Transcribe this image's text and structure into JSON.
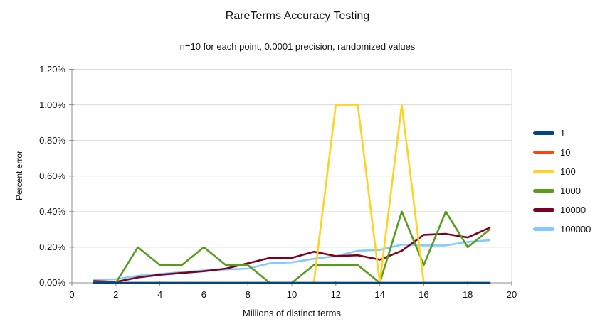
{
  "chart_data": {
    "type": "line",
    "title": "RareTerms Accuracy Testing",
    "subtitle": "n=10 for each point, 0.0001 precision, randomized values",
    "xlabel": "Millions of distinct terms",
    "ylabel": "Percent error",
    "x_range": [
      0,
      20
    ],
    "x_tick_step": 2,
    "x_tick_labels": [
      "0",
      "2",
      "4",
      "6",
      "8",
      "10",
      "12",
      "14",
      "16",
      "18",
      "20"
    ],
    "y_range_percent": [
      0,
      1.2
    ],
    "y_tick_step_percent": 0.2,
    "y_tick_labels": [
      "0.00%",
      "0.20%",
      "0.40%",
      "0.60%",
      "0.80%",
      "1.00%",
      "1.20%"
    ],
    "grid": "horizontal-only",
    "legend_position": "right",
    "x": [
      1,
      2,
      3,
      4,
      5,
      6,
      7,
      8,
      9,
      10,
      11,
      12,
      13,
      14,
      15,
      16,
      17,
      18,
      19
    ],
    "series": [
      {
        "name": "1",
        "color": "#004586",
        "values": [
          0,
          0,
          0,
          0,
          0,
          0,
          0,
          0,
          0,
          0,
          0,
          0,
          0,
          0,
          0,
          0,
          0,
          0,
          0
        ]
      },
      {
        "name": "10",
        "color": "#FF420E",
        "values": [
          0,
          0,
          0,
          0,
          0,
          0,
          0,
          0,
          0,
          0,
          0,
          0,
          0,
          0,
          0,
          0,
          0,
          0,
          0
        ]
      },
      {
        "name": "100",
        "color": "#FFD320",
        "values": [
          0,
          0,
          0,
          0,
          0,
          0,
          0,
          0,
          0,
          0,
          0,
          1.0,
          1.0,
          0,
          1.0,
          0,
          0,
          0,
          0
        ]
      },
      {
        "name": "1000",
        "color": "#579D1C",
        "values": [
          0,
          0,
          0.2,
          0.1,
          0.1,
          0.2,
          0.1,
          0.1,
          0,
          0,
          0.1,
          0.1,
          0.1,
          0,
          0.4,
          0.1,
          0.4,
          0.2,
          0.3
        ]
      },
      {
        "name": "10000",
        "color": "#7E0021",
        "values": [
          0.01,
          0.005,
          0.03,
          0.045,
          0.055,
          0.065,
          0.08,
          0.11,
          0.14,
          0.14,
          0.175,
          0.15,
          0.155,
          0.13,
          0.18,
          0.27,
          0.275,
          0.255,
          0.31
        ]
      },
      {
        "name": "100000",
        "color": "#83CAFF",
        "values": [
          0.015,
          0.02,
          0.04,
          0.05,
          0.06,
          0.07,
          0.075,
          0.08,
          0.11,
          0.115,
          0.135,
          0.15,
          0.18,
          0.185,
          0.215,
          0.21,
          0.21,
          0.23,
          0.24
        ]
      }
    ],
    "style": {
      "gridline_color": "#d9d9d9",
      "axis_color": "#8c8c8c",
      "line_width": 2.6
    }
  }
}
